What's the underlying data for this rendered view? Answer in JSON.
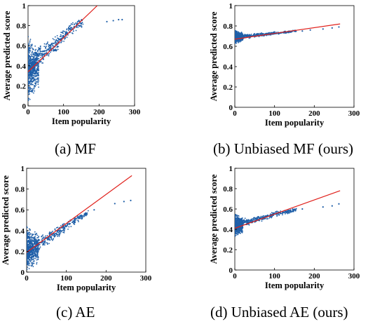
{
  "colors": {
    "points": "#1f5fa8",
    "fit_line": "#e0201b",
    "axes": "#000000"
  },
  "chart_data": [
    {
      "type": "scatter",
      "caption": "(a) MF",
      "xlabel": "Item popularity",
      "ylabel": "Average predicted score",
      "xlim": [
        0,
        300
      ],
      "ylim": [
        0,
        1
      ],
      "xticks": [
        "0",
        "100",
        "200",
        "300"
      ],
      "yticks": [
        "0",
        "0.2",
        "0.4",
        "0.6",
        "0.8",
        "1"
      ],
      "grid": false,
      "fit_line": {
        "x": [
          0,
          195
        ],
        "y": [
          0.34,
          1.0
        ]
      },
      "cluster": {
        "x_range": [
          0,
          30
        ],
        "y_range": [
          0.03,
          0.7
        ]
      },
      "series": [
        {
          "x": [
            5,
            10,
            20,
            30,
            40,
            50,
            60,
            70,
            80,
            90,
            100,
            110,
            120,
            130,
            140,
            150,
            222,
            240,
            255,
            265
          ],
          "y": [
            0.33,
            0.42,
            0.45,
            0.5,
            0.52,
            0.55,
            0.58,
            0.6,
            0.62,
            0.66,
            0.7,
            0.73,
            0.76,
            0.79,
            0.82,
            0.82,
            0.84,
            0.85,
            0.86,
            0.86
          ]
        }
      ]
    },
    {
      "type": "scatter",
      "caption": "(b) Unbiased MF (ours)",
      "xlabel": "Item popularity",
      "ylabel": "Average predicted score",
      "xlim": [
        0,
        300
      ],
      "ylim": [
        0,
        1
      ],
      "xticks": [
        "0",
        "100",
        "200",
        "300"
      ],
      "yticks": [
        "0",
        "0.2",
        "0.4",
        "0.6",
        "0.8",
        "1"
      ],
      "grid": false,
      "fit_line": {
        "x": [
          0,
          265
        ],
        "y": [
          0.67,
          0.82
        ]
      },
      "cluster": {
        "x_range": [
          0,
          20
        ],
        "y_range": [
          0.62,
          0.76
        ]
      },
      "series": [
        {
          "x": [
            5,
            15,
            25,
            40,
            55,
            70,
            85,
            100,
            115,
            130,
            150,
            170,
            190,
            222,
            245,
            262
          ],
          "y": [
            0.68,
            0.69,
            0.7,
            0.7,
            0.71,
            0.72,
            0.72,
            0.73,
            0.73,
            0.74,
            0.75,
            0.75,
            0.76,
            0.77,
            0.78,
            0.79
          ]
        }
      ]
    },
    {
      "type": "scatter",
      "caption": "(c) AE",
      "xlabel": "Item popularity",
      "ylabel": "Average predicted score",
      "xlim": [
        0,
        300
      ],
      "ylim": [
        0,
        1
      ],
      "xticks": [
        "0",
        "100",
        "200",
        "300"
      ],
      "yticks": [
        "0",
        "0.2",
        "0.4",
        "0.6",
        "0.8",
        "1"
      ],
      "grid": false,
      "fit_line": {
        "x": [
          0,
          265
        ],
        "y": [
          0.19,
          0.93
        ]
      },
      "cluster": {
        "x_range": [
          0,
          30
        ],
        "y_range": [
          0.0,
          0.45
        ]
      },
      "series": [
        {
          "x": [
            5,
            15,
            25,
            40,
            55,
            70,
            85,
            100,
            115,
            130,
            150,
            170,
            222,
            245,
            262
          ],
          "y": [
            0.18,
            0.24,
            0.27,
            0.3,
            0.33,
            0.36,
            0.4,
            0.44,
            0.48,
            0.52,
            0.56,
            0.6,
            0.66,
            0.68,
            0.69
          ]
        }
      ]
    },
    {
      "type": "scatter",
      "caption": "(d) Unbiased AE (ours)",
      "xlabel": "Item popularity",
      "ylabel": "Average predicted score",
      "xlim": [
        0,
        300
      ],
      "ylim": [
        0,
        1
      ],
      "xticks": [
        "0",
        "100",
        "200",
        "300"
      ],
      "yticks": [
        "0",
        "0.2",
        "0.4",
        "0.6",
        "0.8",
        "1"
      ],
      "grid": false,
      "fit_line": {
        "x": [
          0,
          265
        ],
        "y": [
          0.41,
          0.78
        ]
      },
      "cluster": {
        "x_range": [
          0,
          20
        ],
        "y_range": [
          0.32,
          0.56
        ]
      },
      "series": [
        {
          "x": [
            5,
            15,
            25,
            40,
            55,
            70,
            85,
            100,
            115,
            130,
            150,
            170,
            222,
            245,
            262
          ],
          "y": [
            0.42,
            0.45,
            0.47,
            0.48,
            0.5,
            0.51,
            0.53,
            0.55,
            0.56,
            0.57,
            0.59,
            0.6,
            0.62,
            0.63,
            0.65
          ]
        }
      ]
    }
  ]
}
